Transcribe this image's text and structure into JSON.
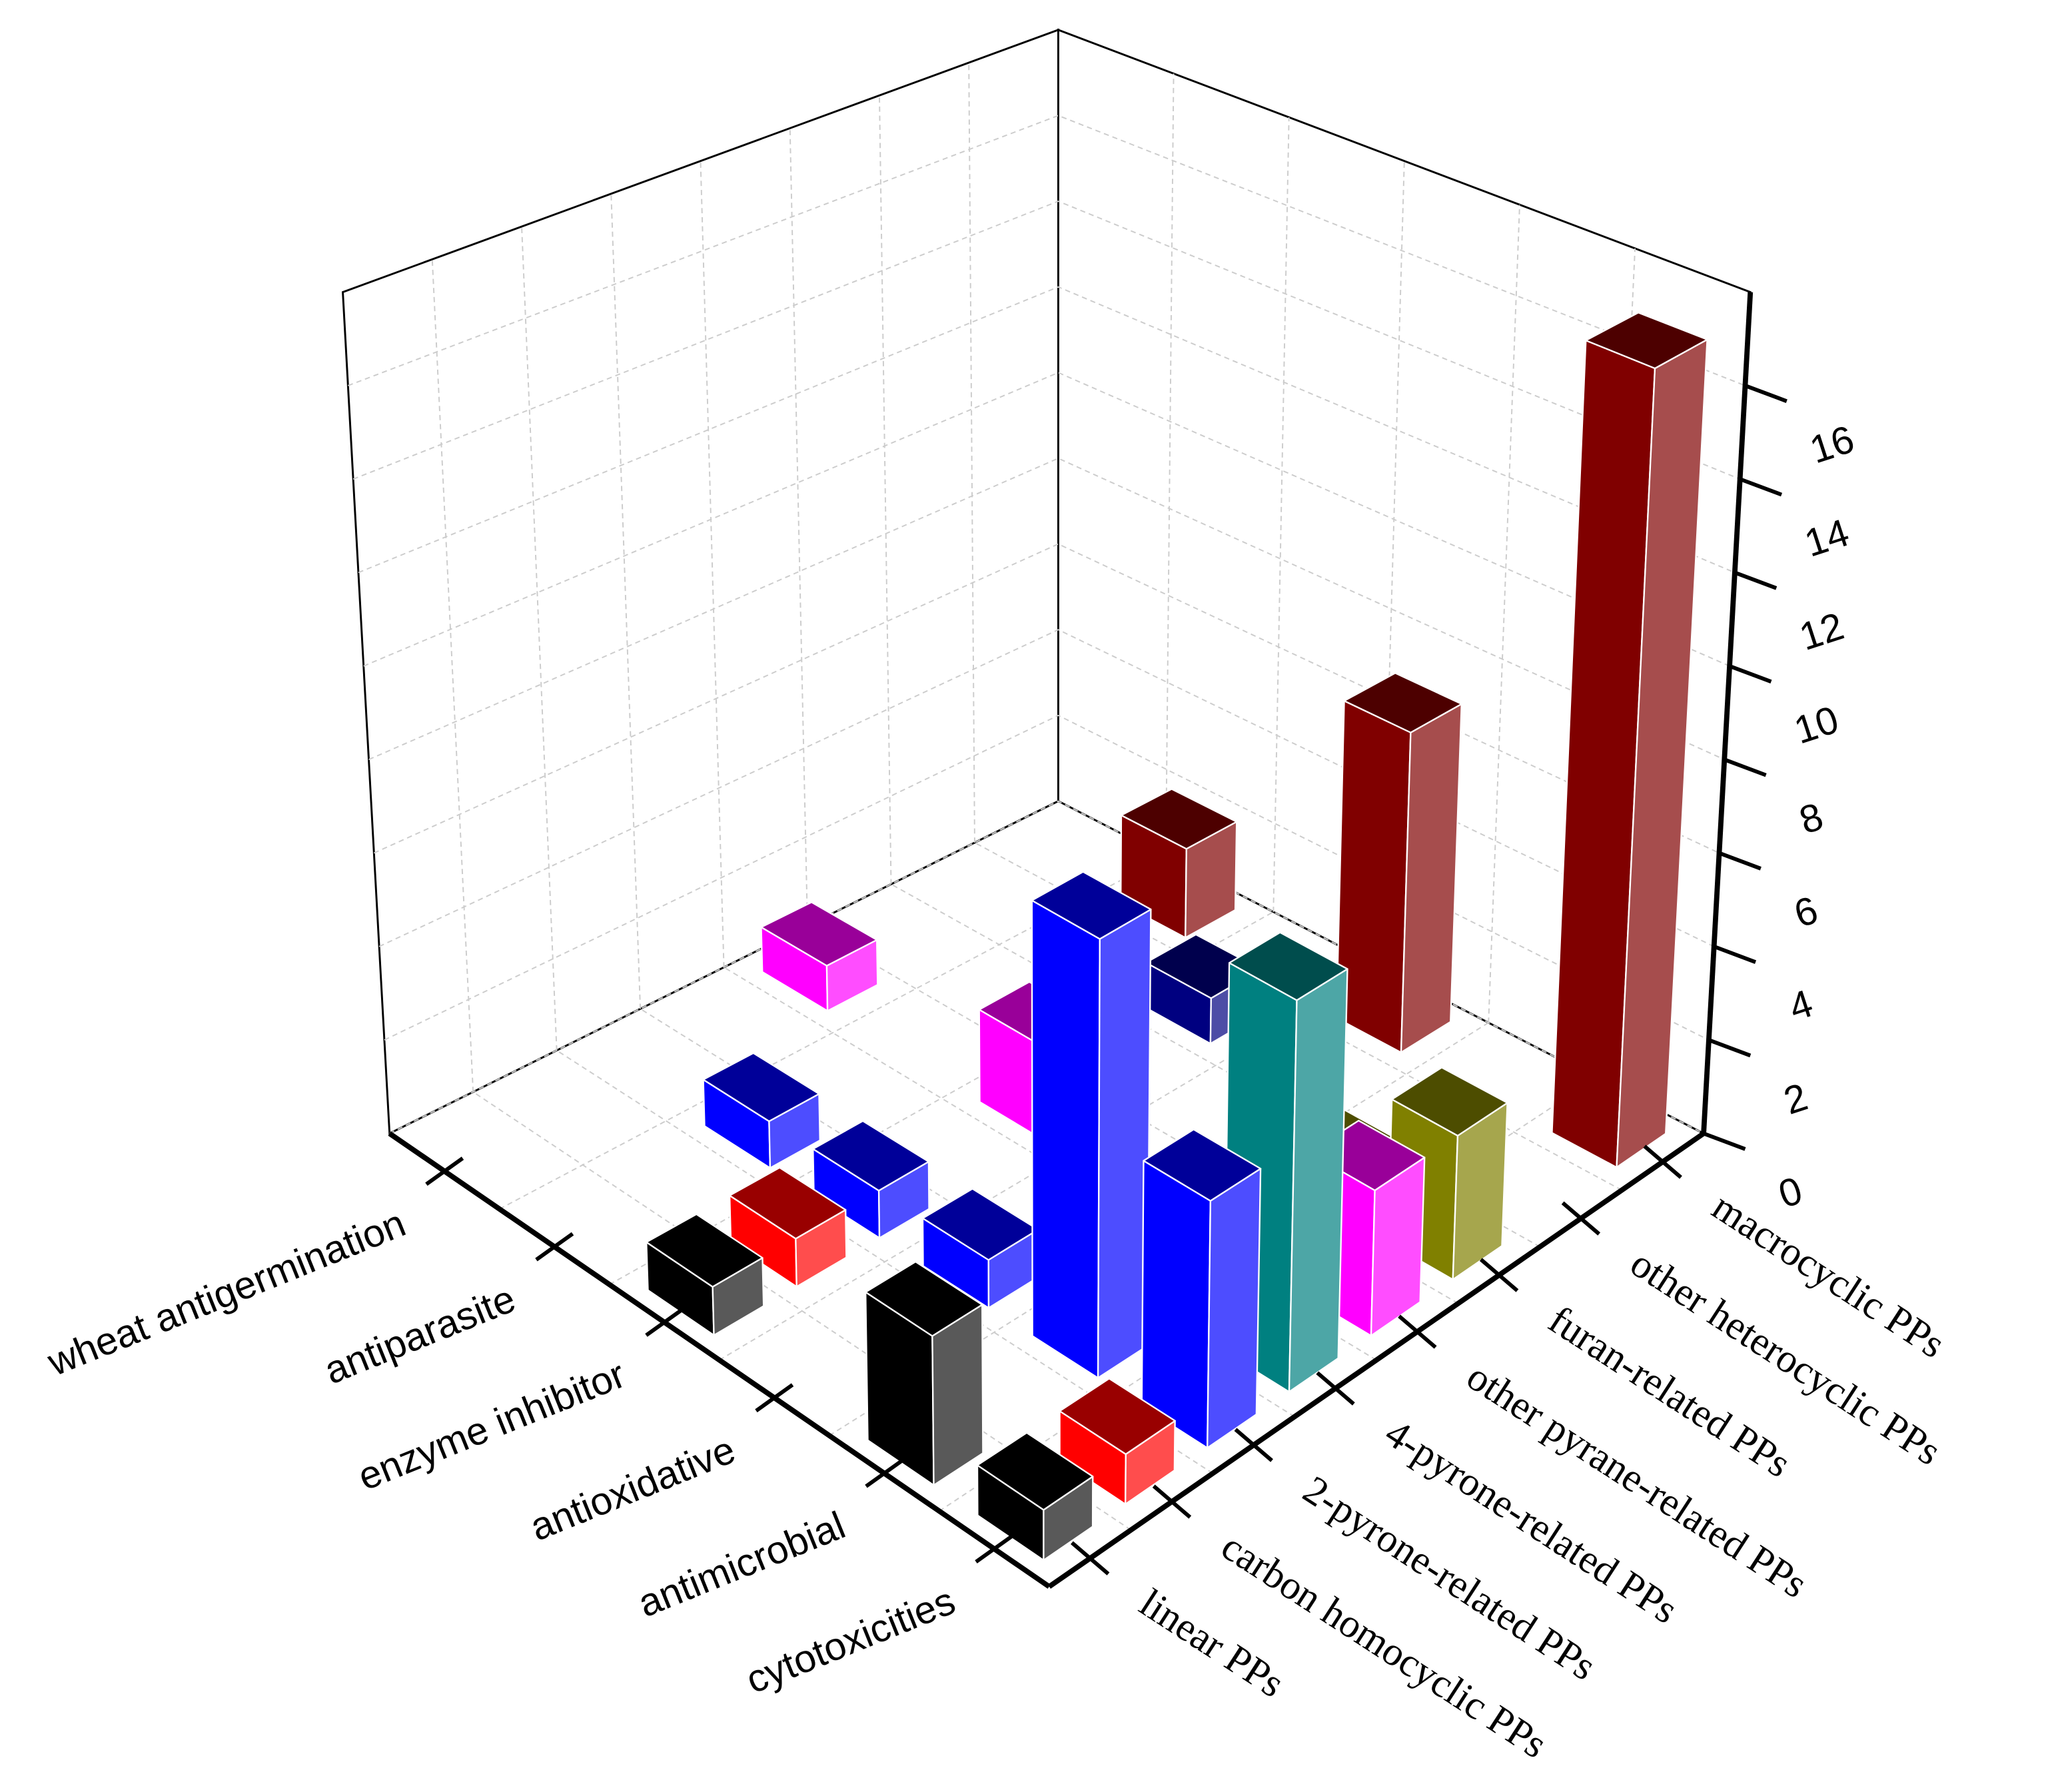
{
  "chart_data": {
    "type": "bar3d",
    "categories": [
      "wheat antigermination",
      "antiparasite",
      "enzyme inhibitor",
      "antioxidative",
      "antimicrobial",
      "cytotoxicities"
    ],
    "series": [
      {
        "name": "macrocyclic PPs",
        "color": "#800000",
        "values": [
          null,
          2,
          null,
          7,
          null,
          17
        ]
      },
      {
        "name": "other heterocyclic PPs",
        "color": "#000080",
        "values": [
          null,
          null,
          1,
          null,
          null,
          null
        ]
      },
      {
        "name": "furan-related PPs",
        "color": "#808000",
        "values": [
          null,
          null,
          null,
          null,
          1,
          3
        ]
      },
      {
        "name": "other pyrane-related PPs",
        "color": "#ff00ff",
        "values": [
          1,
          null,
          2,
          null,
          null,
          3
        ]
      },
      {
        "name": "4-pyrone-related PPs",
        "color": "#008080",
        "values": [
          null,
          null,
          null,
          null,
          null,
          8
        ]
      },
      {
        "name": "2-pyrone-related PPs",
        "color": "#0000ff",
        "values": [
          null,
          1,
          1,
          1,
          9,
          5
        ]
      },
      {
        "name": "carbon homocyclic PPs",
        "color": "#ff0000",
        "values": [
          null,
          null,
          1,
          null,
          null,
          1
        ]
      },
      {
        "name": "linear PPs",
        "color": "#000000",
        "values": [
          null,
          null,
          1,
          null,
          3,
          1
        ]
      }
    ],
    "ylim": [
      0,
      18
    ],
    "yticks": [
      0,
      2,
      4,
      6,
      8,
      10,
      12,
      14,
      16
    ],
    "grid": true
  }
}
